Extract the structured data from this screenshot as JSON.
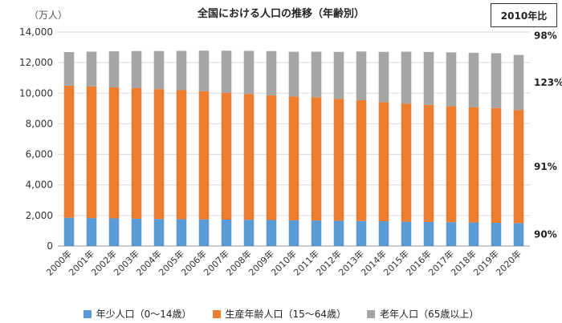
{
  "chart_data": {
    "type": "bar",
    "stacked": true,
    "title": "全国における人口の推移（年齢別）",
    "unit_label": "（万人）",
    "ylim": [
      0,
      14000
    ],
    "y_ticks": [
      "0",
      "2,000",
      "4,000",
      "6,000",
      "8,000",
      "10,000",
      "12,000",
      "14,000"
    ],
    "y_tick_values": [
      0,
      2000,
      4000,
      6000,
      8000,
      10000,
      12000,
      14000
    ],
    "categories": [
      "2000年",
      "2001年",
      "2002年",
      "2003年",
      "2004年",
      "2005年",
      "2006年",
      "2007年",
      "2008年",
      "2009年",
      "2010年",
      "2011年",
      "2012年",
      "2013年",
      "2014年",
      "2015年",
      "2016年",
      "2017年",
      "2018年",
      "2019年",
      "2020年"
    ],
    "series": [
      {
        "name": "年少人口（0～14歳）",
        "color": "#5b9bd5",
        "values": [
          1850,
          1830,
          1810,
          1790,
          1770,
          1760,
          1745,
          1730,
          1720,
          1705,
          1684,
          1670,
          1655,
          1640,
          1623,
          1595,
          1578,
          1560,
          1542,
          1522,
          1503
        ]
      },
      {
        "name": "生産年齢人口（15～64歳）",
        "color": "#ed7d31",
        "values": [
          8640,
          8610,
          8570,
          8540,
          8500,
          8440,
          8380,
          8300,
          8230,
          8150,
          8103,
          8070,
          7970,
          7900,
          7785,
          7730,
          7660,
          7596,
          7545,
          7507,
          7400
        ]
      },
      {
        "name": "老年人口（65歳以上）",
        "color": "#a5a5a5",
        "values": [
          2200,
          2280,
          2360,
          2430,
          2490,
          2570,
          2660,
          2750,
          2820,
          2900,
          2925,
          2975,
          3080,
          3190,
          3300,
          3390,
          3460,
          3515,
          3557,
          3589,
          3600
        ]
      }
    ],
    "annotation_box": "2010年比",
    "annotations": [
      "98%",
      "123%",
      "91%",
      "90%"
    ],
    "grid": true,
    "legend_position": "bottom"
  }
}
